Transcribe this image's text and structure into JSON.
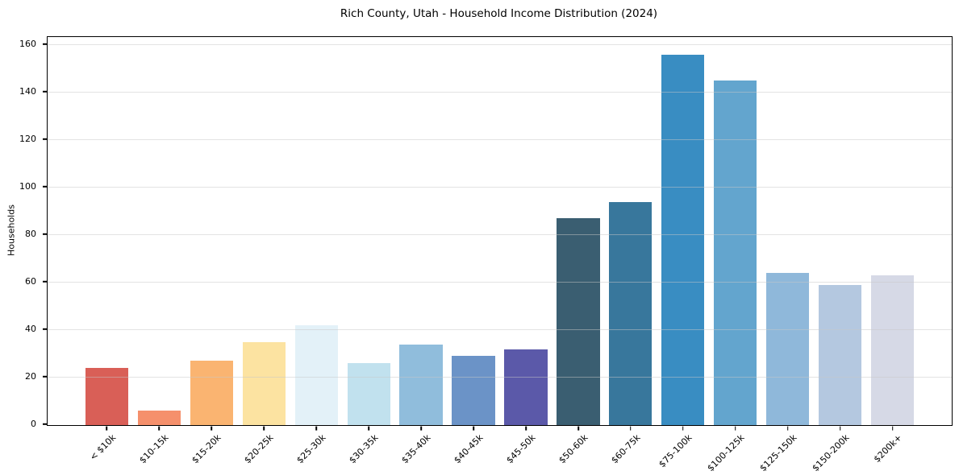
{
  "chart_data": {
    "type": "bar",
    "title": "Rich County, Utah - Household Income Distribution (2024)",
    "xlabel": "",
    "ylabel": "Households",
    "categories": [
      "< $10k",
      "$10-15k",
      "$15-20k",
      "$20-25k",
      "$25-30k",
      "$30-35k",
      "$35-40k",
      "$40-45k",
      "$45-50k",
      "$50-60k",
      "$60-75k",
      "$75-100k",
      "$100-125k",
      "$125-150k",
      "$150-200k",
      "$200k+"
    ],
    "values": [
      24,
      6,
      27,
      35,
      42,
      26,
      34,
      29,
      32,
      87,
      94,
      156,
      145,
      64,
      59,
      63
    ],
    "bar_colors": [
      "#d95f57",
      "#f5906c",
      "#fab471",
      "#fce3a1",
      "#e3f1f8",
      "#c1e1ee",
      "#90bddc",
      "#6b93c7",
      "#5b59a9",
      "#3a5e71",
      "#38779c",
      "#398dc2",
      "#63a5ce",
      "#8fb8da",
      "#b4c8e0",
      "#d6d9e6"
    ],
    "yticks": [
      0,
      20,
      40,
      60,
      80,
      100,
      120,
      140,
      160
    ],
    "ylim": [
      0,
      163.4
    ],
    "grid": "horizontal",
    "legend": "none",
    "background": "#ffffff",
    "spine_color": "#000000"
  }
}
